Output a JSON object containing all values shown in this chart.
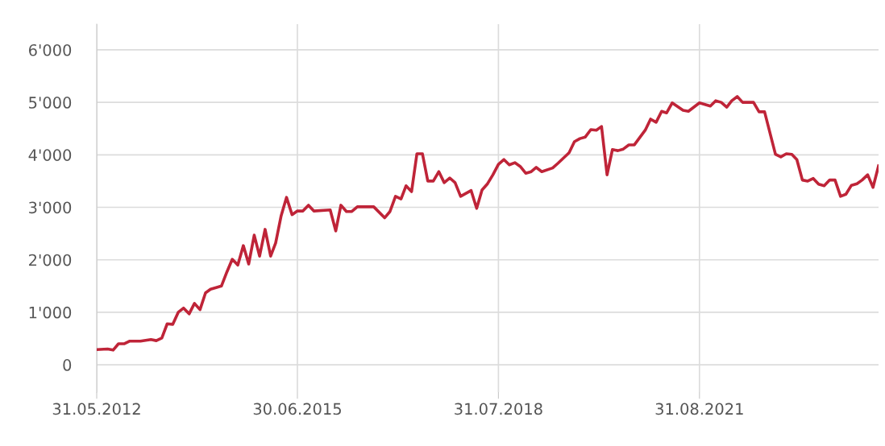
{
  "chart_data": {
    "type": "line",
    "x": [
      "2012-05-31",
      "2012-07-31",
      "2012-08-31",
      "2012-09-30",
      "2012-10-31",
      "2012-11-30",
      "2013-01-31",
      "2013-03-31",
      "2013-04-30",
      "2013-05-31",
      "2013-06-30",
      "2013-07-31",
      "2013-08-31",
      "2013-09-30",
      "2013-10-31",
      "2013-11-30",
      "2013-12-31",
      "2014-01-31",
      "2014-02-28",
      "2014-03-31",
      "2014-04-30",
      "2014-05-31",
      "2014-06-30",
      "2014-07-31",
      "2014-08-31",
      "2014-09-30",
      "2014-10-31",
      "2014-11-30",
      "2014-12-31",
      "2015-01-31",
      "2015-02-28",
      "2015-03-31",
      "2015-04-30",
      "2015-05-31",
      "2015-06-30",
      "2015-07-31",
      "2015-08-31",
      "2015-09-30",
      "2015-12-31",
      "2016-01-31",
      "2016-02-29",
      "2016-03-31",
      "2016-04-30",
      "2016-05-31",
      "2016-08-31",
      "2016-10-31",
      "2016-11-30",
      "2016-12-31",
      "2017-01-31",
      "2017-02-28",
      "2017-03-31",
      "2017-04-30",
      "2017-05-31",
      "2017-06-30",
      "2017-07-31",
      "2017-08-31",
      "2017-09-30",
      "2017-10-31",
      "2017-11-30",
      "2017-12-31",
      "2018-02-28",
      "2018-03-31",
      "2018-04-30",
      "2018-05-31",
      "2018-06-30",
      "2018-07-31",
      "2018-08-31",
      "2018-09-30",
      "2018-10-31",
      "2018-11-30",
      "2018-12-31",
      "2019-01-31",
      "2019-02-28",
      "2019-03-31",
      "2019-05-31",
      "2019-06-30",
      "2019-08-31",
      "2019-09-30",
      "2019-10-31",
      "2019-11-30",
      "2019-12-31",
      "2020-01-31",
      "2020-02-29",
      "2020-03-31",
      "2020-04-30",
      "2020-05-31",
      "2020-06-30",
      "2020-07-31",
      "2020-08-31",
      "2020-10-31",
      "2020-11-30",
      "2020-12-31",
      "2021-01-31",
      "2021-02-28",
      "2021-03-31",
      "2021-05-31",
      "2021-06-30",
      "2021-08-31",
      "2021-10-31",
      "2021-11-30",
      "2021-12-31",
      "2022-01-31",
      "2022-02-28",
      "2022-03-31",
      "2022-04-30",
      "2022-06-30",
      "2022-07-31",
      "2022-08-31",
      "2022-10-31",
      "2022-11-30",
      "2022-12-31",
      "2023-01-31",
      "2023-02-28",
      "2023-03-31",
      "2023-04-30",
      "2023-05-31",
      "2023-06-30",
      "2023-07-31",
      "2023-08-31",
      "2023-09-30",
      "2023-10-31",
      "2023-11-30",
      "2023-12-31",
      "2024-01-31",
      "2024-02-29",
      "2024-03-31",
      "2024-04-30",
      "2024-05-31"
    ],
    "series": [
      {
        "color": "#bf2438",
        "values": [
          290,
          300,
          280,
          400,
          400,
          450,
          450,
          480,
          460,
          510,
          780,
          770,
          1000,
          1080,
          970,
          1170,
          1050,
          1370,
          1440,
          1470,
          1500,
          1770,
          2010,
          1900,
          2270,
          1920,
          2470,
          2070,
          2580,
          2070,
          2320,
          2840,
          3190,
          2860,
          2930,
          2930,
          3040,
          2930,
          2950,
          2550,
          3040,
          2920,
          2920,
          3010,
          3010,
          2800,
          2920,
          3210,
          3160,
          3410,
          3300,
          4020,
          4020,
          3500,
          3500,
          3680,
          3470,
          3560,
          3470,
          3210,
          3320,
          2980,
          3330,
          3450,
          3620,
          3820,
          3910,
          3810,
          3850,
          3780,
          3650,
          3680,
          3760,
          3680,
          3750,
          3840,
          4040,
          4250,
          4310,
          4340,
          4480,
          4470,
          4540,
          3620,
          4100,
          4080,
          4110,
          4190,
          4190,
          4470,
          4680,
          4620,
          4830,
          4800,
          4990,
          4850,
          4830,
          4990,
          4930,
          5030,
          5000,
          4910,
          5030,
          5110,
          5000,
          5000,
          4820,
          4820,
          4010,
          3960,
          4020,
          4010,
          3910,
          3520,
          3500,
          3550,
          3440,
          3410,
          3520,
          3520,
          3210,
          3250,
          3420,
          3450,
          3520,
          3620,
          3380,
          3790
        ]
      }
    ],
    "xlim": [
      "2012-05-31",
      "2024-05-31"
    ],
    "xticks": [
      {
        "value": "2012-05-31",
        "label": "31.05.2012"
      },
      {
        "value": "2015-06-30",
        "label": "30.06.2015"
      },
      {
        "value": "2018-07-31",
        "label": "31.07.2018"
      },
      {
        "value": "2021-08-31",
        "label": "31.08.2021"
      }
    ],
    "ylim": [
      -520,
      6490
    ],
    "yticks": [
      {
        "value": 0,
        "label": "0"
      },
      {
        "value": 1000,
        "label": "1'000"
      },
      {
        "value": 2000,
        "label": "2'000"
      },
      {
        "value": 3000,
        "label": "3'000"
      },
      {
        "value": 4000,
        "label": "4'000"
      },
      {
        "value": 5000,
        "label": "5'000"
      },
      {
        "value": 6000,
        "label": "6'000"
      }
    ],
    "grid": true,
    "line_style": "solid",
    "marker": "none"
  }
}
